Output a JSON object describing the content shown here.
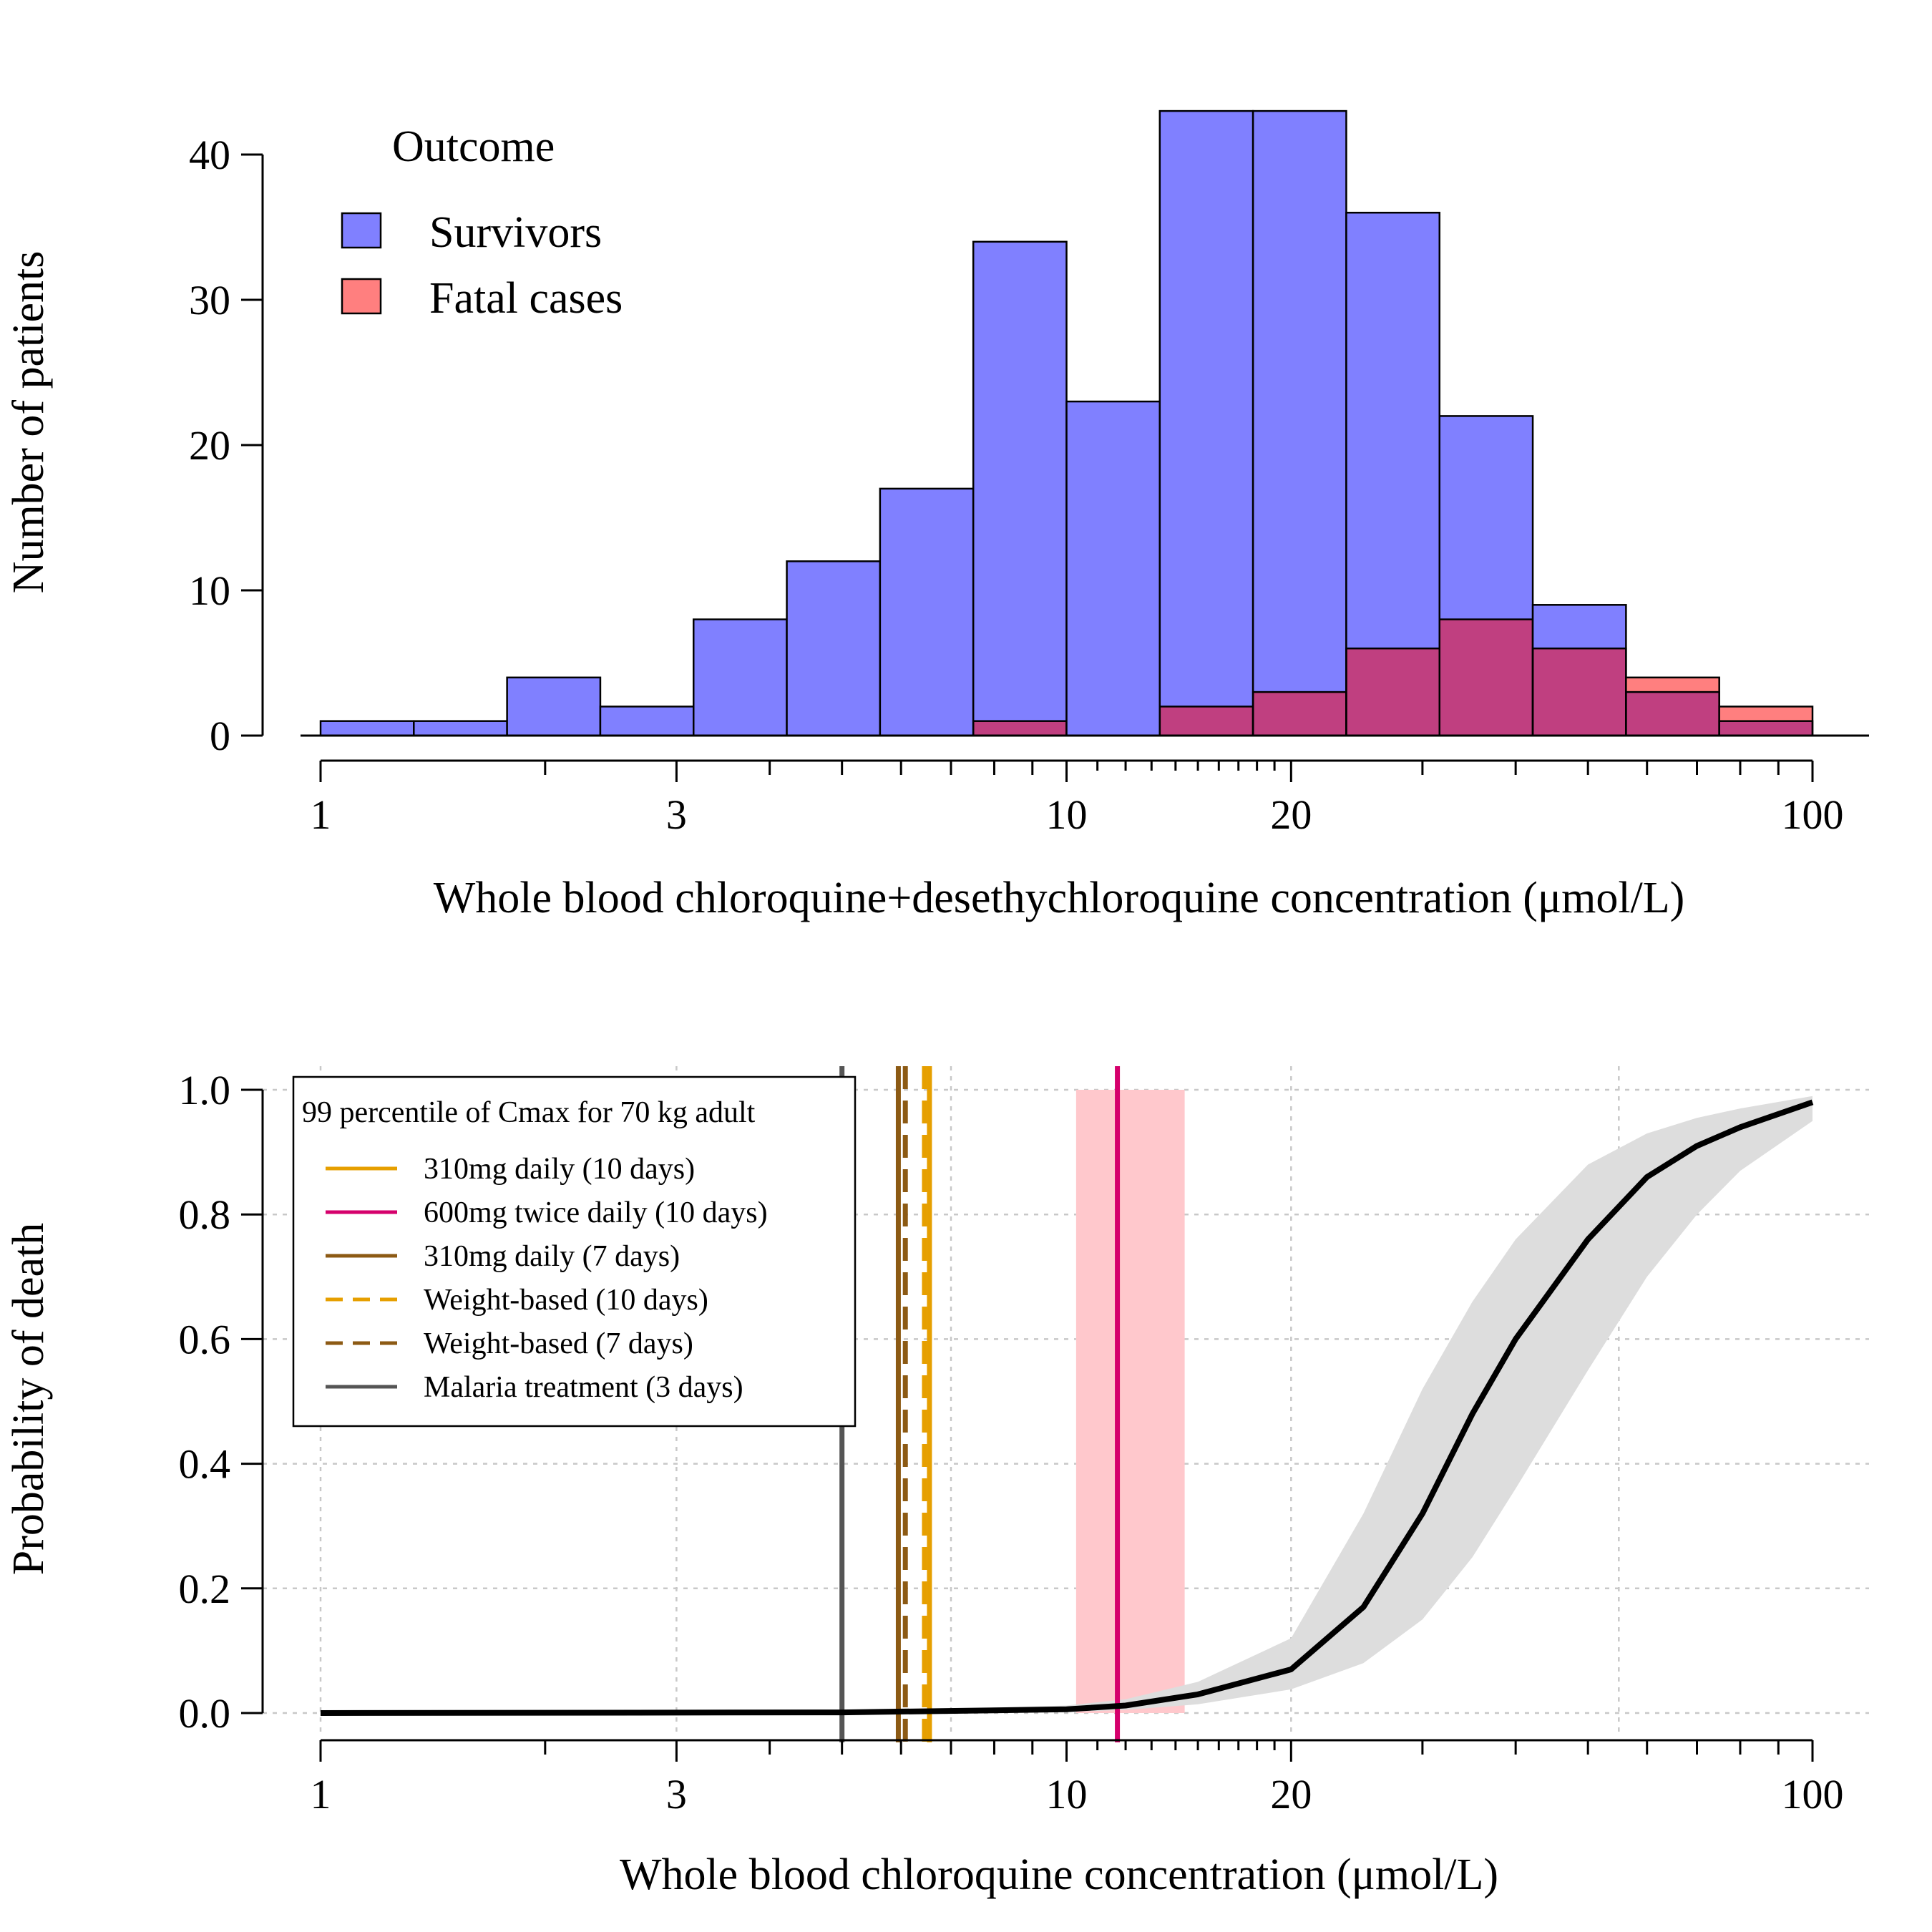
{
  "chart_data": [
    {
      "type": "bar",
      "subtype": "histogram",
      "xscale": "log",
      "xlim": [
        1,
        100
      ],
      "ylim": [
        0,
        43
      ],
      "xticks_major": [
        1,
        3,
        10,
        20,
        100
      ],
      "xticks_minor": [
        2,
        4,
        5,
        6,
        7,
        8,
        9,
        30,
        40,
        50,
        60,
        70,
        80,
        90
      ],
      "xticks_fine": [
        11,
        12,
        13,
        14,
        15,
        16,
        17,
        18,
        19
      ],
      "xtick_labels": [
        "1",
        "3",
        "10",
        "20",
        "100"
      ],
      "yticks": [
        0,
        10,
        20,
        30,
        40
      ],
      "ytick_labels": [
        "0",
        "10",
        "20",
        "30",
        "40"
      ],
      "xlabel": "Whole blood chloroquine+desethychloroquine concentration (μmol/L)",
      "ylabel": "Number of patients",
      "bin_edges": [
        1.0,
        1.3335,
        1.7783,
        2.3714,
        3.1623,
        4.217,
        5.6234,
        7.4989,
        10.0,
        13.335,
        17.783,
        23.714,
        31.623,
        42.17,
        56.234,
        74.989,
        100.0
      ],
      "series": [
        {
          "name": "Survivors",
          "color": "#8080ff",
          "values": [
            1,
            1,
            4,
            2,
            8,
            12,
            17,
            34,
            23,
            43,
            43,
            36,
            22,
            9,
            3,
            1
          ]
        },
        {
          "name": "Fatal cases",
          "color": "#ff7f7f",
          "values": [
            0,
            0,
            0,
            0,
            0,
            0,
            0,
            1,
            0,
            2,
            3,
            6,
            8,
            6,
            4,
            2
          ]
        }
      ],
      "overlap_color": "#c03f80",
      "legend": {
        "title": "Outcome",
        "position": "top-left"
      }
    },
    {
      "type": "line",
      "xscale": "log",
      "xlim": [
        1,
        100
      ],
      "ylim": [
        0,
        1
      ],
      "xticks_major": [
        1,
        3,
        10,
        20,
        100
      ],
      "xticks_minor": [
        2,
        4,
        5,
        6,
        7,
        8,
        9,
        30,
        40,
        50,
        60,
        70,
        80,
        90
      ],
      "xticks_fine": [
        11,
        12,
        13,
        14,
        15,
        16,
        17,
        18,
        19
      ],
      "xtick_labels": [
        "1",
        "3",
        "10",
        "20",
        "100"
      ],
      "yticks": [
        0,
        0.2,
        0.4,
        0.6,
        0.8,
        1.0
      ],
      "ytick_labels": [
        "0.0",
        "0.2",
        "0.4",
        "0.6",
        "0.8",
        "1.0"
      ],
      "xgrid": [
        1,
        3,
        7,
        20,
        55
      ],
      "grid": true,
      "xlabel": "Whole blood chloroquine concentration (μmol/L)",
      "ylabel": "Probability of death",
      "curve": {
        "color": "#000000",
        "band_color": "#dddddd",
        "x": [
          1,
          5,
          10,
          12,
          15,
          20,
          25,
          30,
          35,
          40,
          50,
          60,
          70,
          80,
          100
        ],
        "y": [
          0.0,
          0.001,
          0.006,
          0.012,
          0.03,
          0.07,
          0.17,
          0.32,
          0.48,
          0.6,
          0.76,
          0.86,
          0.91,
          0.94,
          0.98
        ],
        "y_lower": [
          0.0,
          0.0,
          0.002,
          0.005,
          0.014,
          0.038,
          0.08,
          0.15,
          0.25,
          0.36,
          0.55,
          0.7,
          0.8,
          0.87,
          0.95
        ],
        "y_upper": [
          0.0,
          0.002,
          0.012,
          0.022,
          0.05,
          0.12,
          0.32,
          0.52,
          0.66,
          0.76,
          0.88,
          0.93,
          0.955,
          0.97,
          0.99
        ]
      },
      "shaded_region": {
        "x": [
          10.3,
          14.4
        ],
        "color": "#ffc8cc"
      },
      "vlines": [
        {
          "name": "310mg daily (10 days)",
          "x": 6.55,
          "color": "#e69f00",
          "style": "solid"
        },
        {
          "name": "600mg twice daily (10 days)",
          "x": 11.7,
          "color": "#d5006c",
          "style": "solid"
        },
        {
          "name": "310mg daily (7 days)",
          "x": 5.95,
          "color": "#8c5a14",
          "style": "solid"
        },
        {
          "name": "Weight-based (10 days)",
          "x": 6.45,
          "color": "#e69f00",
          "style": "dashed"
        },
        {
          "name": "Weight-based (7 days)",
          "x": 6.08,
          "color": "#8c5a14",
          "style": "dashed"
        },
        {
          "name": "Malaria treatment (3 days)",
          "x": 5.0,
          "color": "#555555",
          "style": "solid"
        }
      ],
      "legend": {
        "title": "99 percentile of Cmax for 70 kg adult",
        "position": "top-left"
      }
    }
  ]
}
